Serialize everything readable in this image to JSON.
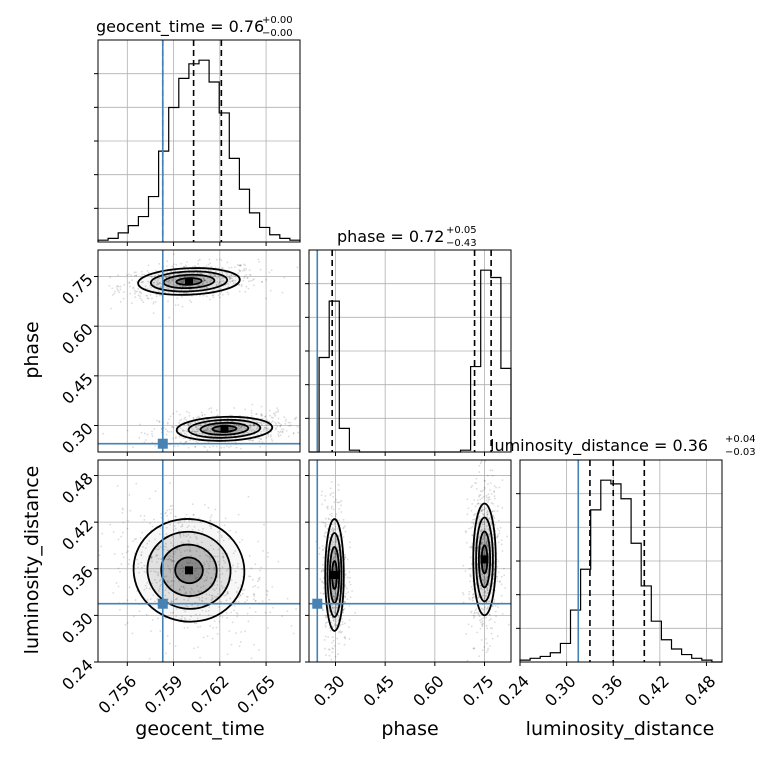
{
  "chart_data": {
    "type": "corner",
    "grid": true,
    "parameters": [
      {
        "key": "geocent_time",
        "label": "geocent_time",
        "title_lhs": "geocent_time = 0.76",
        "title_sup": "+0.00",
        "title_sub": "−0.00",
        "range": [
          0.7541,
          0.7672
        ],
        "ticks": [
          0.756,
          0.759,
          0.762,
          0.765
        ],
        "tick_labels": [
          "0.756",
          "0.759",
          "0.762",
          "0.765"
        ],
        "quantiles": [
          0.7583,
          0.7603,
          0.7621
        ],
        "truth": 0.7583,
        "hist_edges_range": [
          0.7541,
          0.7672
        ],
        "hist_counts": [
          1,
          2,
          5,
          9,
          14,
          25,
          50,
          74,
          90,
          98,
          100,
          88,
          71,
          46,
          29,
          16,
          8,
          4,
          2,
          1
        ]
      },
      {
        "key": "phase",
        "label": "phase",
        "title_lhs": "phase = 0.72",
        "title_sup": "+0.05",
        "title_sub": "−0.43",
        "range": [
          0.22,
          0.83
        ],
        "ticks": [
          0.3,
          0.45,
          0.6,
          0.75
        ],
        "tick_labels": [
          "0.30",
          "0.45",
          "0.60",
          "0.75"
        ],
        "quantiles": [
          0.29,
          0.72,
          0.77
        ],
        "truth": 0.245,
        "hist_edges_range": [
          0.22,
          0.83
        ],
        "hist_counts": [
          0,
          52,
          83,
          13,
          1,
          0,
          0,
          0,
          0,
          0,
          0,
          0,
          0,
          0,
          0,
          1,
          47,
          100,
          96,
          46
        ]
      },
      {
        "key": "luminosity_distance",
        "label": "luminosity_distance",
        "title_lhs": "luminosity_distance = 0.36",
        "title_sup": "+0.04",
        "title_sub": "−0.03",
        "range": [
          0.24,
          0.5
        ],
        "ticks": [
          0.24,
          0.3,
          0.36,
          0.42,
          0.48
        ],
        "tick_labels": [
          "0.24",
          "0.30",
          "0.36",
          "0.42",
          "0.48"
        ],
        "quantiles": [
          0.33,
          0.36,
          0.4
        ],
        "truth": 0.315,
        "hist_edges_range": [
          0.24,
          0.5
        ],
        "hist_counts": [
          1,
          2,
          3,
          5,
          10,
          28,
          50,
          82,
          98,
          96,
          88,
          64,
          41,
          22,
          12,
          7,
          4,
          2,
          1,
          0
        ]
      }
    ],
    "pairs": [
      {
        "x": "geocent_time",
        "y": "phase",
        "blobs": [
          {
            "mx": 0.76,
            "my": 0.735,
            "sx": 0.00165,
            "sy": 0.02,
            "rho": 0.25
          },
          {
            "mx": 0.7623,
            "my": 0.29,
            "sx": 0.00155,
            "sy": 0.018,
            "rho": 0.2
          }
        ]
      },
      {
        "x": "geocent_time",
        "y": "luminosity_distance",
        "blobs": [
          {
            "mx": 0.76,
            "my": 0.358,
            "sx": 0.0018,
            "sy": 0.033,
            "rho": -0.3
          }
        ]
      },
      {
        "x": "phase",
        "y": "luminosity_distance",
        "blobs": [
          {
            "mx": 0.297,
            "my": 0.352,
            "sx": 0.014,
            "sy": 0.036,
            "rho": 0.0,
            "w": 0.45
          },
          {
            "mx": 0.75,
            "my": 0.372,
            "sx": 0.017,
            "sy": 0.036,
            "rho": 0.0,
            "w": 0.55
          }
        ]
      }
    ],
    "colors": {
      "truth": "#4682b4",
      "hist": "#000000",
      "quantile": "#000000",
      "grid": "#b0b0b0",
      "contour": "#000000"
    }
  }
}
